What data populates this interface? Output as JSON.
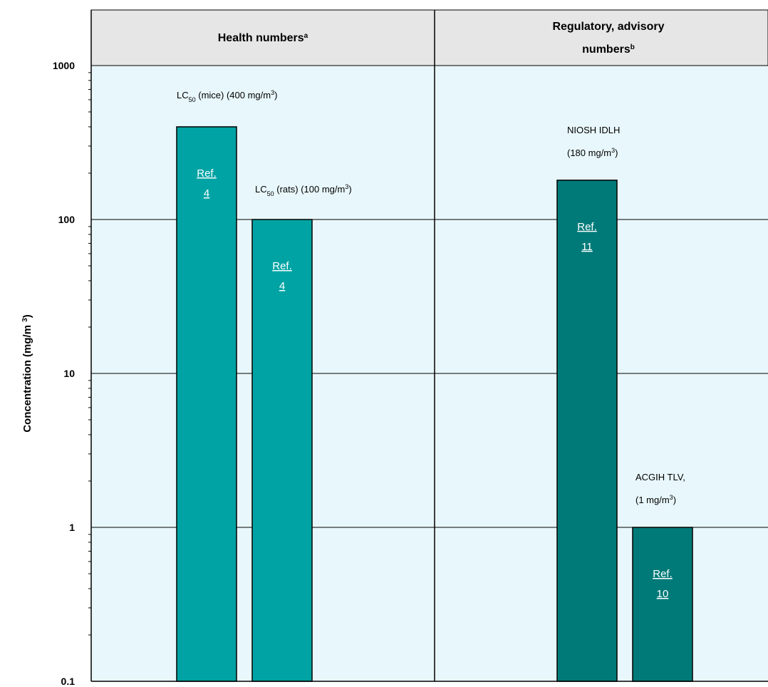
{
  "chart_data": {
    "type": "bar",
    "yscale": "log",
    "ylim": [
      0.1,
      1000
    ],
    "ylabel": "Concentration (mg/m",
    "ylabel_sup": "3",
    "ylabel_close": ")",
    "yticks": [
      "0.1",
      "1",
      "10",
      "100",
      "1000"
    ],
    "grid": true,
    "background_color": "#e8f7fb",
    "groups": [
      {
        "label": "Health numbers",
        "label_sup": "a",
        "bars": [
          {
            "value": 400,
            "color": "#00a3a3",
            "annotation": {
              "prefix": "LC",
              "sub": "50",
              "mid": " (mice) (400 mg/m",
              "sup": "3",
              "suffix": ")"
            },
            "ref": {
              "line1": "Ref.",
              "line2": "4"
            }
          },
          {
            "value": 100,
            "color": "#00a3a3",
            "annotation": {
              "prefix": "LC",
              "sub": "50",
              "mid": " (rats) (100 mg/m",
              "sup": "3",
              "suffix": ")"
            },
            "ref": {
              "line1": "Ref.",
              "line2": "4"
            }
          }
        ]
      },
      {
        "label_line1": "Regulatory, advisory",
        "label_line2": "numbers",
        "label_sup": "b",
        "bars": [
          {
            "value": 180,
            "color": "#007a78",
            "annotation": {
              "line1": "NIOSH IDLH",
              "mid": "(180 mg/m",
              "sup": "3",
              "suffix": ")"
            },
            "ref": {
              "line1": "Ref.",
              "line2": "11"
            }
          },
          {
            "value": 1,
            "color": "#007a78",
            "annotation": {
              "line1": "ACGIH TLV,",
              "mid": "(1 mg/m",
              "sup": "3",
              "suffix": ")"
            },
            "ref": {
              "line1": "Ref.",
              "line2": "10"
            }
          }
        ]
      }
    ]
  }
}
